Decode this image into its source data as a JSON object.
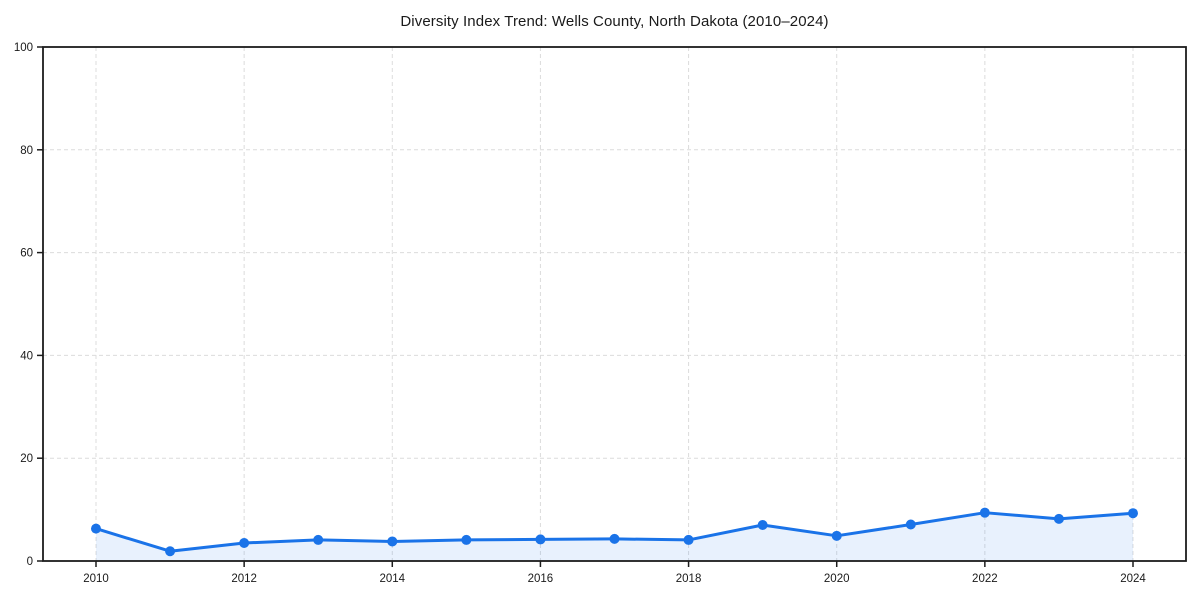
{
  "chart_data": {
    "type": "line",
    "title": "Diversity Index Trend: Wells County, North Dakota (2010–2024)",
    "xlabel": "",
    "ylabel": "",
    "x": [
      2010,
      2011,
      2012,
      2013,
      2014,
      2015,
      2016,
      2017,
      2018,
      2019,
      2020,
      2021,
      2022,
      2023,
      2024
    ],
    "series": [
      {
        "name": "Diversity Index",
        "values": [
          6.3,
          1.9,
          3.5,
          4.1,
          3.8,
          4.1,
          4.2,
          4.3,
          4.1,
          7.0,
          4.9,
          7.1,
          9.4,
          8.2,
          9.3
        ]
      }
    ],
    "ylim": [
      0,
      100
    ],
    "yticks": [
      0,
      20,
      40,
      60,
      80,
      100
    ],
    "xticks": [
      2010,
      2012,
      2014,
      2016,
      2018,
      2020,
      2022,
      2024
    ],
    "grid": "dashed, at labeled ticks only",
    "legend": false,
    "marker": "circle",
    "area_fill": true,
    "colors": {
      "line": "#1a73e8",
      "marker": "#1a73e8",
      "area": "#1a73e8",
      "grid": "#dcdcdc",
      "spine": "#1c1c1c",
      "tick_text": "#1a1a1a",
      "background": "#ffffff"
    }
  }
}
